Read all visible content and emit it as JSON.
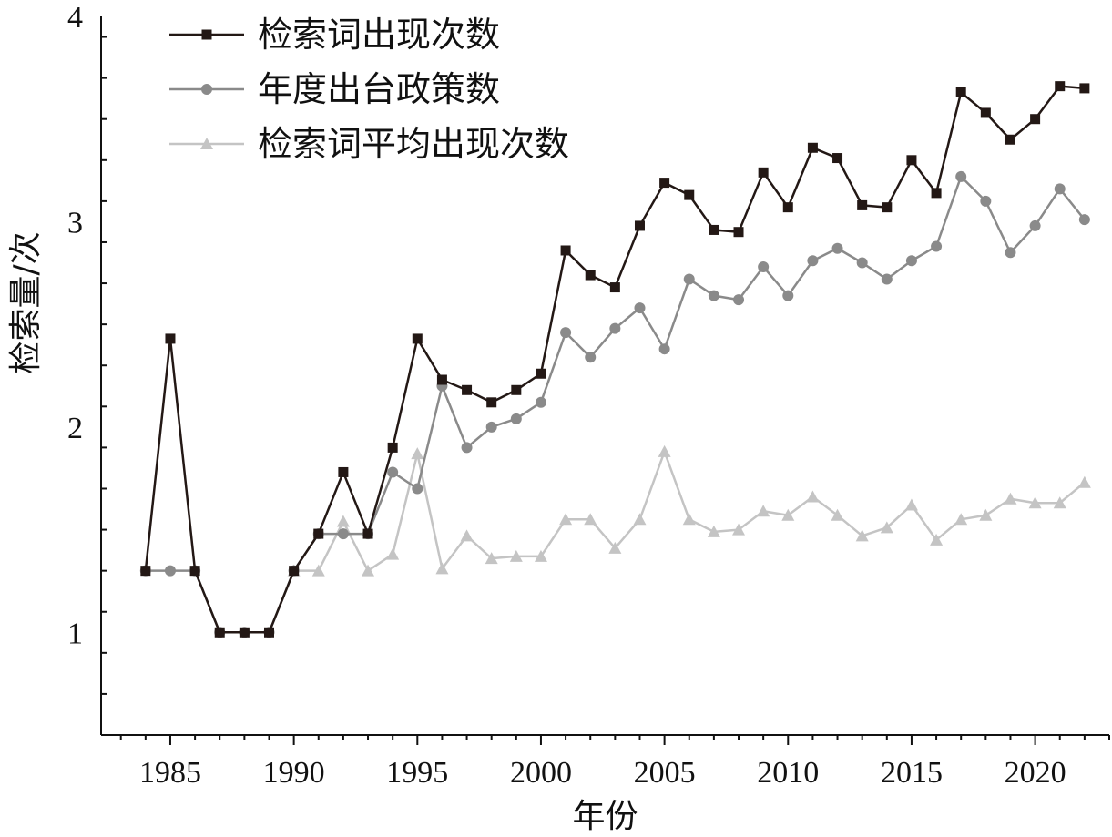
{
  "chart_data": {
    "type": "line",
    "title": "",
    "xlabel": "年份",
    "ylabel": "检索量/次",
    "xlim": [
      1982.2,
      2023.0
    ],
    "ylim": [
      0.5,
      4.0
    ],
    "x_ticks": [
      1985,
      1990,
      1995,
      2000,
      2005,
      2010,
      2015,
      2020
    ],
    "x_tick_labels": [
      "1985",
      "1990",
      "1995",
      "2000",
      "2005",
      "2010",
      "2015",
      "2020"
    ],
    "y_ticks": [
      1,
      2,
      3,
      4
    ],
    "y_tick_labels": [
      "1",
      "2",
      "3",
      "4"
    ],
    "grid": false,
    "legend_position": "top-left",
    "series": [
      {
        "name": "检索词出现次数",
        "color": "#231815",
        "marker": "square",
        "x": [
          1984,
          1985,
          1986,
          1987,
          1988,
          1989,
          1990,
          1991,
          1992,
          1993,
          1994,
          1995,
          1996,
          1997,
          1998,
          1999,
          2000,
          2001,
          2002,
          2003,
          2004,
          2005,
          2006,
          2007,
          2008,
          2009,
          2010,
          2011,
          2012,
          2013,
          2014,
          2015,
          2016,
          2017,
          2018,
          2019,
          2020,
          2021,
          2022
        ],
        "values": [
          1.3,
          2.43,
          1.3,
          1.0,
          1.0,
          1.0,
          1.3,
          1.48,
          1.78,
          1.48,
          1.9,
          2.43,
          2.23,
          2.18,
          2.12,
          2.18,
          2.26,
          2.86,
          2.74,
          2.68,
          2.98,
          3.19,
          3.13,
          2.96,
          2.95,
          3.24,
          3.07,
          3.36,
          3.31,
          3.08,
          3.07,
          3.3,
          3.14,
          3.63,
          3.53,
          3.4,
          3.5,
          3.66,
          3.65
        ]
      },
      {
        "name": "年度出台政策数",
        "color": "#8a8a8a",
        "marker": "circle",
        "x": [
          1984,
          1985,
          1986,
          1987,
          1988,
          1989,
          1990,
          1991,
          1992,
          1993,
          1994,
          1995,
          1996,
          1997,
          1998,
          1999,
          2000,
          2001,
          2002,
          2003,
          2004,
          2005,
          2006,
          2007,
          2008,
          2009,
          2010,
          2011,
          2012,
          2013,
          2014,
          2015,
          2016,
          2017,
          2018,
          2019,
          2020,
          2021,
          2022
        ],
        "values": [
          1.3,
          1.3,
          1.3,
          1.0,
          1.0,
          1.0,
          1.3,
          1.48,
          1.48,
          1.48,
          1.78,
          1.7,
          2.2,
          1.9,
          2.0,
          2.04,
          2.12,
          2.46,
          2.34,
          2.48,
          2.58,
          2.38,
          2.72,
          2.64,
          2.62,
          2.78,
          2.64,
          2.81,
          2.87,
          2.8,
          2.72,
          2.81,
          2.88,
          3.22,
          3.1,
          2.85,
          2.98,
          3.16,
          3.01
        ]
      },
      {
        "name": "检索词平均出现次数",
        "color": "#c4c4c4",
        "marker": "triangle",
        "x": [
          1990,
          1991,
          1992,
          1993,
          1994,
          1995,
          1996,
          1997,
          1998,
          1999,
          2000,
          2001,
          2002,
          2003,
          2004,
          2005,
          2006,
          2007,
          2008,
          2009,
          2010,
          2011,
          2012,
          2013,
          2014,
          2015,
          2016,
          2017,
          2018,
          2019,
          2020,
          2021,
          2022
        ],
        "values": [
          1.3,
          1.3,
          1.54,
          1.3,
          1.38,
          1.87,
          1.31,
          1.47,
          1.36,
          1.37,
          1.37,
          1.55,
          1.55,
          1.41,
          1.55,
          1.88,
          1.55,
          1.49,
          1.5,
          1.59,
          1.57,
          1.66,
          1.57,
          1.47,
          1.51,
          1.62,
          1.45,
          1.55,
          1.57,
          1.65,
          1.63,
          1.63,
          1.73
        ]
      }
    ]
  }
}
